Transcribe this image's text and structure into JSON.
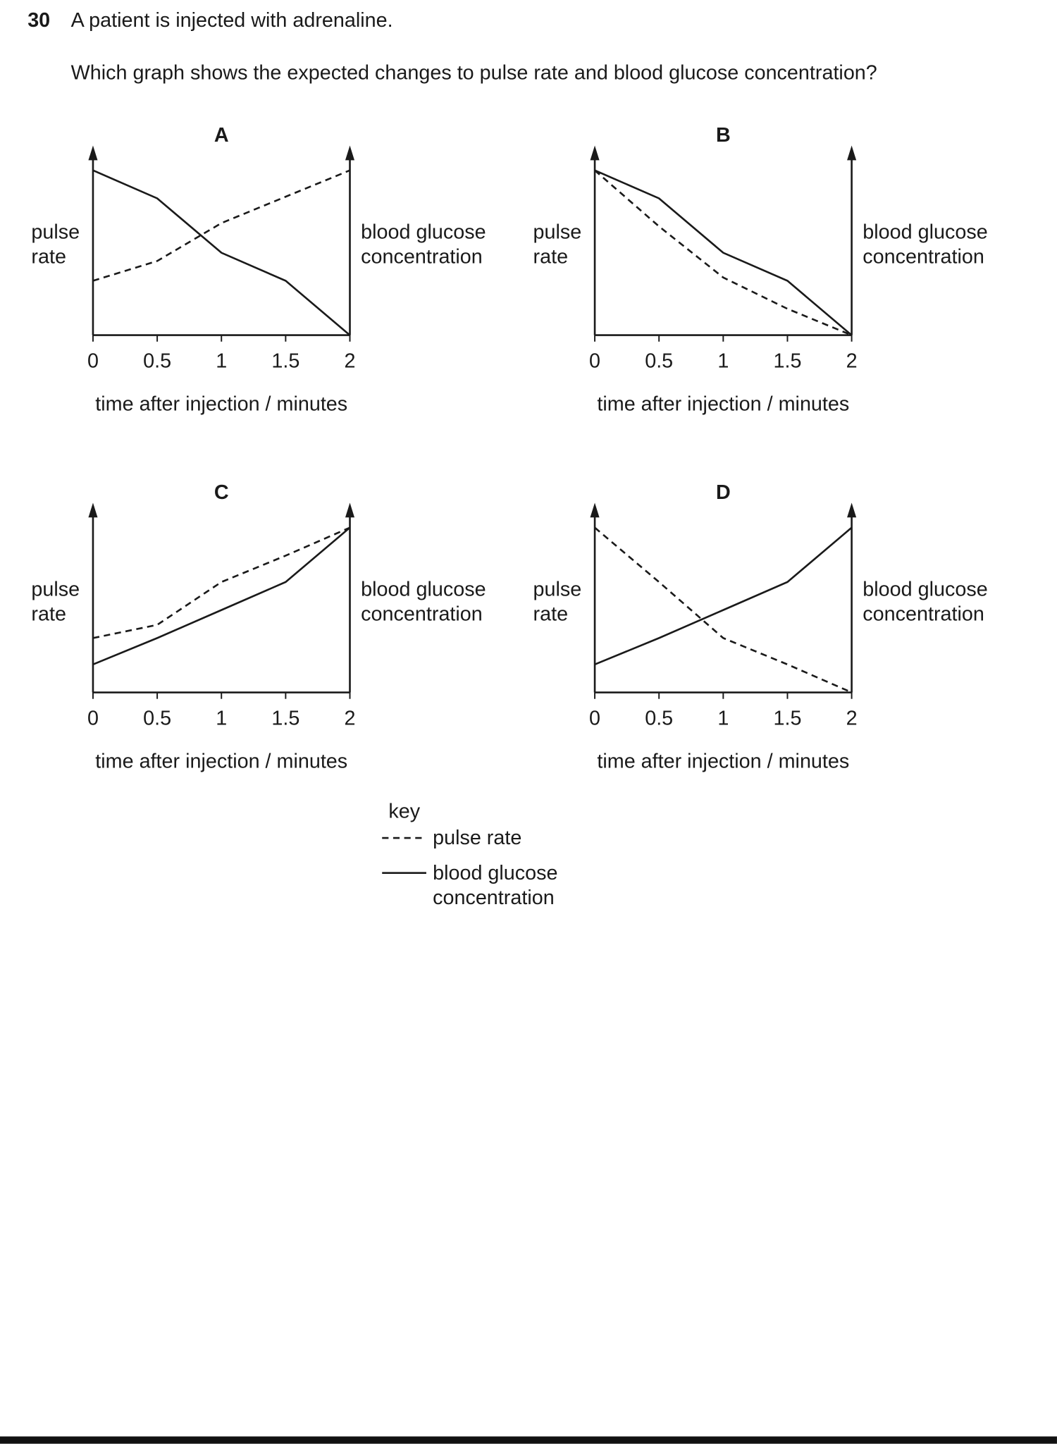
{
  "question": {
    "number": "30",
    "text": "A patient is injected with adrenaline.",
    "prompt": "Which graph shows the expected changes to pulse rate and blood glucose concentration?"
  },
  "chart_data": [
    {
      "type": "line",
      "title": "A",
      "y_label": "pulse rate",
      "y2_label": "blood glucose concentration",
      "x_label": "time after injection / minutes",
      "x": [
        0,
        0.5,
        1,
        1.5,
        2
      ],
      "xlim": [
        0,
        2
      ],
      "xticks": [
        0,
        0.5,
        1,
        1.5,
        2
      ],
      "ylim": [
        0,
        100
      ],
      "color": "#1a1a1a",
      "series": [
        {
          "style": "dashed",
          "values": [
            33,
            45,
            68,
            84,
            100
          ]
        },
        {
          "style": "solid",
          "values": [
            100,
            83,
            50,
            33,
            0
          ]
        }
      ]
    },
    {
      "type": "line",
      "title": "B",
      "y_label": "pulse rate",
      "y2_label": "blood glucose concentration",
      "x_label": "time after injection / minutes",
      "x": [
        0,
        0.5,
        1,
        1.5,
        2
      ],
      "xlim": [
        0,
        2
      ],
      "xticks": [
        0,
        0.5,
        1,
        1.5,
        2
      ],
      "ylim": [
        0,
        100
      ],
      "color": "#1a1a1a",
      "series": [
        {
          "style": "dashed",
          "values": [
            100,
            66,
            35,
            16,
            0
          ]
        },
        {
          "style": "solid",
          "values": [
            100,
            83,
            50,
            33,
            0
          ]
        }
      ]
    },
    {
      "type": "line",
      "title": "C",
      "y_label": "pulse rate",
      "y2_label": "blood glucose concentration",
      "x_label": "time after injection / minutes",
      "x": [
        0,
        0.5,
        1,
        1.5,
        2
      ],
      "xlim": [
        0,
        2
      ],
      "xticks": [
        0,
        0.5,
        1,
        1.5,
        2
      ],
      "ylim": [
        0,
        100
      ],
      "color": "#1a1a1a",
      "series": [
        {
          "style": "dashed",
          "values": [
            33,
            41,
            67,
            83,
            100
          ]
        },
        {
          "style": "solid",
          "values": [
            17,
            33,
            50,
            67,
            100
          ]
        }
      ]
    },
    {
      "type": "line",
      "title": "D",
      "y_label": "pulse rate",
      "y2_label": "blood glucose concentration",
      "x_label": "time after injection / minutes",
      "x": [
        0,
        0.5,
        1,
        1.5,
        2
      ],
      "xlim": [
        0,
        2
      ],
      "xticks": [
        0,
        0.5,
        1,
        1.5,
        2
      ],
      "ylim": [
        0,
        100
      ],
      "color": "#1a1a1a",
      "series": [
        {
          "style": "dashed",
          "values": [
            100,
            67,
            33,
            17,
            0
          ]
        },
        {
          "style": "solid",
          "values": [
            17,
            33,
            50,
            67,
            100
          ]
        }
      ]
    }
  ],
  "key": {
    "title": "key",
    "items": [
      {
        "label": "pulse rate",
        "style": "dashed"
      },
      {
        "label": "blood glucose concentration",
        "style": "solid"
      }
    ]
  }
}
